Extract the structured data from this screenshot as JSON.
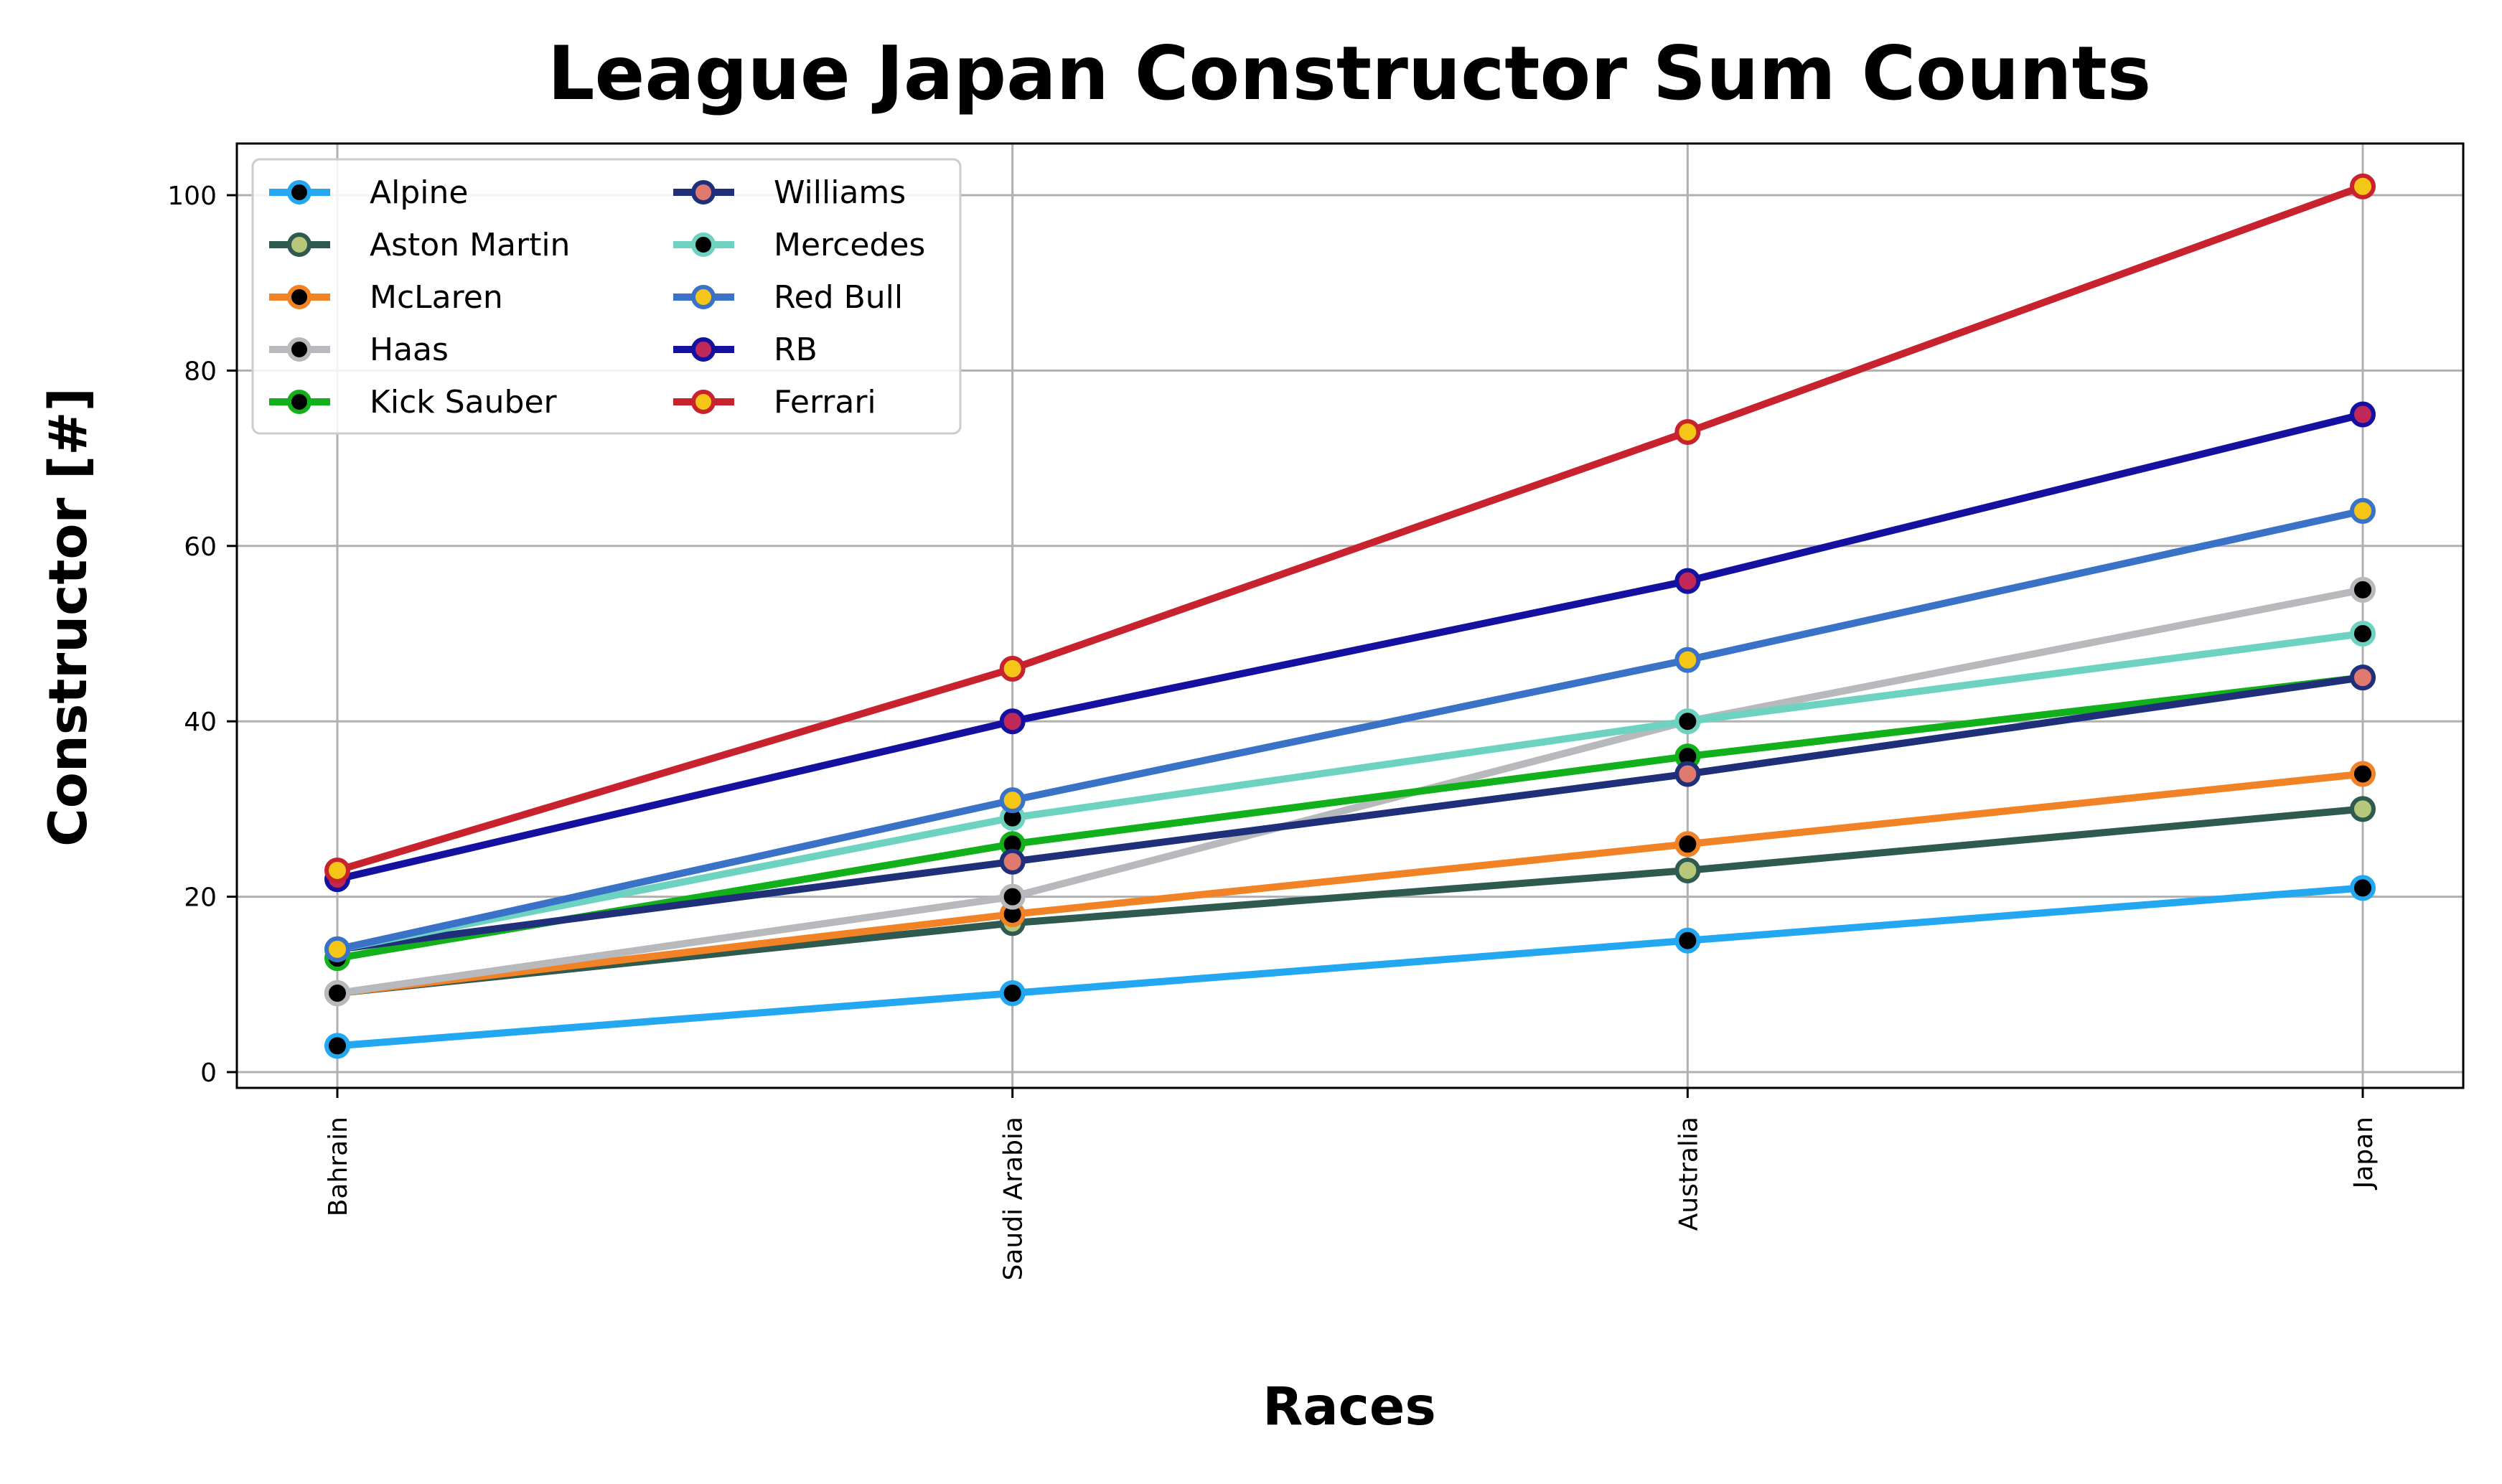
{
  "chart_data": {
    "type": "line",
    "title": "League Japan Constructor Sum Counts",
    "xlabel": "Races",
    "ylabel": "Constructor [#]",
    "categories": [
      "Bahrain",
      "Saudi Arabia",
      "Australia",
      "Japan"
    ],
    "ylim": [
      -2,
      106
    ],
    "yticks": [
      0,
      20,
      40,
      60,
      80,
      100
    ],
    "grid": true,
    "legend_position": "top-left",
    "legend_columns": 2,
    "series": [
      {
        "name": "Alpine",
        "values": [
          3,
          9,
          15,
          21
        ],
        "color": "#22a7f0",
        "marker_face": "#000000",
        "marker_edge": "#22a7f0"
      },
      {
        "name": "Aston Martin",
        "values": [
          9,
          17,
          23,
          30
        ],
        "color": "#2f5a4f",
        "marker_face": "#b8c87a",
        "marker_edge": "#2f5a4f"
      },
      {
        "name": "McLaren",
        "values": [
          9,
          18,
          26,
          34
        ],
        "color": "#f28226",
        "marker_face": "#000000",
        "marker_edge": "#f28226"
      },
      {
        "name": "Haas",
        "values": [
          9,
          20,
          40,
          55
        ],
        "color": "#b7b9bc",
        "marker_face": "#000000",
        "marker_edge": "#b7b9bc"
      },
      {
        "name": "Kick Sauber",
        "values": [
          13,
          26,
          36,
          45
        ],
        "color": "#12b01a",
        "marker_face": "#000000",
        "marker_edge": "#12b01a"
      },
      {
        "name": "Williams",
        "values": [
          14,
          24,
          34,
          45
        ],
        "color": "#1f2f7a",
        "marker_face": "#e07a6e",
        "marker_edge": "#1f2f7a"
      },
      {
        "name": "Mercedes",
        "values": [
          14,
          29,
          40,
          50
        ],
        "color": "#6dd3c0",
        "marker_face": "#000000",
        "marker_edge": "#6dd3c0"
      },
      {
        "name": "Red Bull",
        "values": [
          14,
          31,
          47,
          64
        ],
        "color": "#3a72c8",
        "marker_face": "#f5c518",
        "marker_edge": "#3a72c8"
      },
      {
        "name": "RB",
        "values": [
          22,
          40,
          56,
          75
        ],
        "color": "#1410a0",
        "marker_face": "#c0285a",
        "marker_edge": "#1410a0"
      },
      {
        "name": "Ferrari",
        "values": [
          23,
          46,
          73,
          101
        ],
        "color": "#c8222e",
        "marker_face": "#f5c518",
        "marker_edge": "#c8222e"
      }
    ]
  }
}
